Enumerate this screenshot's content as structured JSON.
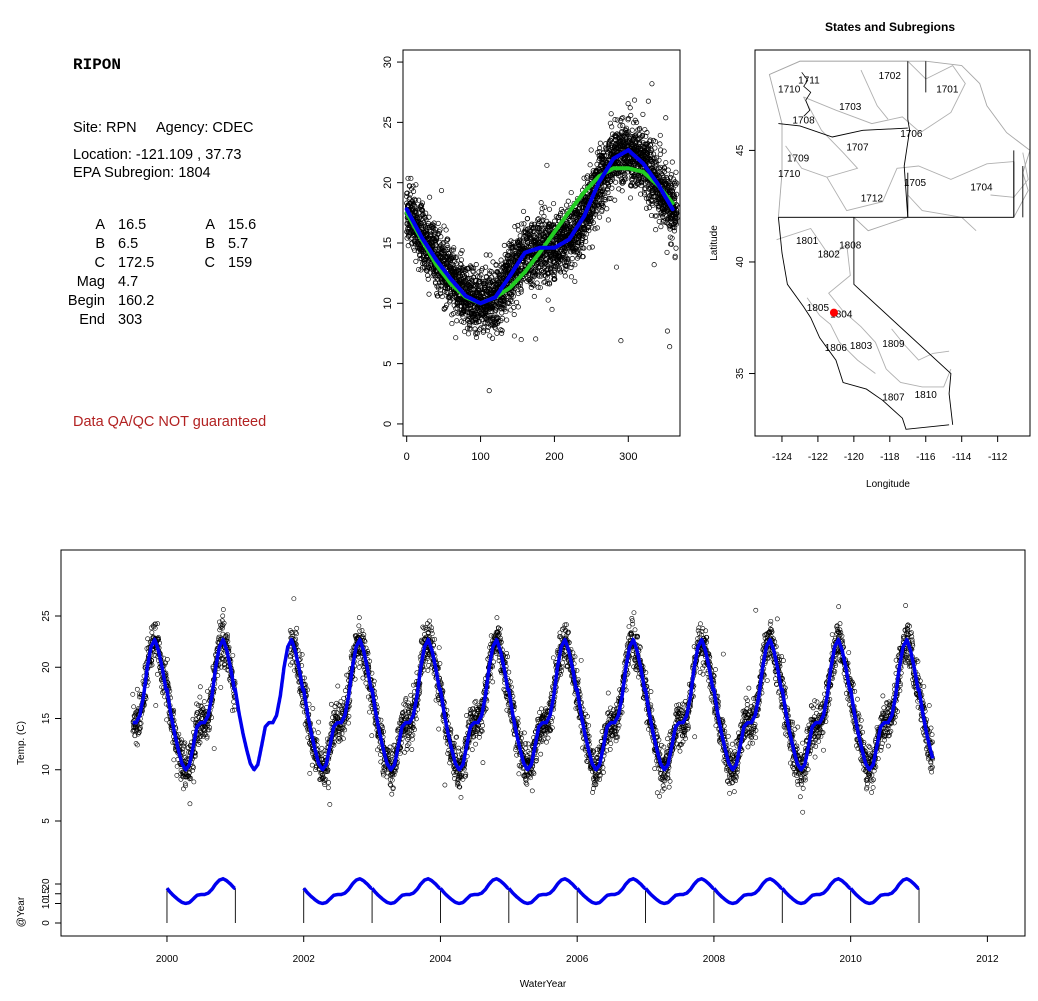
{
  "info": {
    "site_name": "RIPON",
    "site_line": "Site: RPN     Agency: CDEC",
    "location_line": "Location: -121.109 , 37.73",
    "subregion_line": "EPA Subregion: 1804",
    "warning": "Data QA/QC NOT guaranteed",
    "coef_col1": [
      {
        "label": "A",
        "value": "16.5"
      },
      {
        "label": "B",
        "value": "6.5"
      },
      {
        "label": "C",
        "value": "172.5"
      },
      {
        "label": "Mag",
        "value": "4.7"
      },
      {
        "label": "Begin",
        "value": "160.2"
      },
      {
        "label": "End",
        "value": "303"
      }
    ],
    "coef_col2": [
      {
        "label": "A",
        "value": "15.6"
      },
      {
        "label": "B",
        "value": "5.7"
      },
      {
        "label": "C",
        "value": "159"
      }
    ]
  },
  "colors": {
    "blue": "#0000ee",
    "green": "#22cc22",
    "red": "#ff0000",
    "warn": "#b22222"
  },
  "chart_data": [
    {
      "type": "scatter",
      "title": "",
      "xlabel": "",
      "ylabel": "",
      "xlim": [
        -5,
        370
      ],
      "ylim": [
        -1,
        31
      ],
      "x_ticks": [
        "0",
        "100",
        "200",
        "300"
      ],
      "y_ticks": [
        "0",
        "5",
        "10",
        "15",
        "20",
        "25",
        "30"
      ],
      "series": [
        {
          "kind": "points",
          "color": "#000000",
          "description_x": "day of water year",
          "points_per_day": 12
        },
        {
          "kind": "line",
          "color": "#0000ee",
          "x": [
            0,
            20,
            40,
            60,
            80,
            100,
            120,
            140,
            160,
            180,
            200,
            220,
            240,
            260,
            280,
            300,
            320,
            340,
            360
          ],
          "y": [
            17.8,
            15.5,
            13.6,
            12.0,
            10.6,
            10.0,
            10.5,
            12.3,
            14.2,
            14.6,
            14.6,
            15.3,
            17.2,
            20.0,
            22.0,
            22.7,
            21.6,
            19.9,
            17.8
          ]
        },
        {
          "kind": "line",
          "color": "#22cc22",
          "x": [
            0,
            20,
            40,
            60,
            80,
            100,
            120,
            140,
            160,
            180,
            200,
            220,
            240,
            260,
            280,
            300,
            320,
            340,
            360
          ],
          "y": [
            17.5,
            15.3,
            13.2,
            11.6,
            10.5,
            10.0,
            10.5,
            11.3,
            12.6,
            14.2,
            15.9,
            17.6,
            19.2,
            20.5,
            21.2,
            21.2,
            20.9,
            19.8,
            18.3
          ]
        }
      ]
    },
    {
      "type": "map",
      "title": "States and Subregions",
      "xlabel": "Longitude",
      "ylabel": "Latitude",
      "xlim": [
        -125.5,
        -110.2
      ],
      "ylim": [
        32.2,
        49.5
      ],
      "x_ticks": [
        "-124",
        "-122",
        "-120",
        "-118",
        "-116",
        "-114",
        "-112"
      ],
      "y_ticks": [
        "35",
        "40",
        "45"
      ],
      "subregion_labels": [
        {
          "text": "1702",
          "lon": -118.0,
          "lat": 48.2
        },
        {
          "text": "1701",
          "lon": -114.8,
          "lat": 47.6
        },
        {
          "text": "1711",
          "lon": -122.5,
          "lat": 48.0
        },
        {
          "text": "1710",
          "lon": -123.6,
          "lat": 47.6
        },
        {
          "text": "1703",
          "lon": -120.2,
          "lat": 46.8
        },
        {
          "text": "1708",
          "lon": -122.8,
          "lat": 46.2
        },
        {
          "text": "1706",
          "lon": -116.8,
          "lat": 45.6
        },
        {
          "text": "1707",
          "lon": -119.8,
          "lat": 45.0
        },
        {
          "text": "1709",
          "lon": -123.1,
          "lat": 44.5
        },
        {
          "text": "1710",
          "lon": -123.6,
          "lat": 43.8
        },
        {
          "text": "1705",
          "lon": -116.6,
          "lat": 43.4
        },
        {
          "text": "1704",
          "lon": -112.9,
          "lat": 43.2
        },
        {
          "text": "1712",
          "lon": -119.0,
          "lat": 42.7
        },
        {
          "text": "1801",
          "lon": -122.6,
          "lat": 40.8
        },
        {
          "text": "1808",
          "lon": -120.2,
          "lat": 40.6
        },
        {
          "text": "1802",
          "lon": -121.4,
          "lat": 40.2
        },
        {
          "text": "1805",
          "lon": -122.0,
          "lat": 37.8
        },
        {
          "text": "1804",
          "lon": -120.7,
          "lat": 37.5
        },
        {
          "text": "1806",
          "lon": -121.0,
          "lat": 36.0
        },
        {
          "text": "1803",
          "lon": -119.6,
          "lat": 36.1
        },
        {
          "text": "1809",
          "lon": -117.8,
          "lat": 36.2
        },
        {
          "text": "1807",
          "lon": -117.8,
          "lat": 33.8
        },
        {
          "text": "1810",
          "lon": -116.0,
          "lat": 33.9
        }
      ],
      "site_marker": {
        "lon": -121.109,
        "lat": 37.73,
        "color": "#ff0000"
      }
    },
    {
      "type": "scatter",
      "title": "",
      "xlabel": "WaterYear",
      "ylabel": "Temp. (C)",
      "ylabel_lower": "@Year",
      "xlim": [
        1998.45,
        2012.55
      ],
      "ylim_upper": [
        0.5,
        30.0
      ],
      "ylim_lower": [
        -2,
        32
      ],
      "x_ticks": [
        "2000",
        "2002",
        "2004",
        "2006",
        "2008",
        "2010",
        "2012"
      ],
      "y_ticks_upper": [
        "5",
        "10",
        "15",
        "20",
        "25"
      ],
      "y_ticks_lower": [
        "0",
        "10",
        "15",
        "20"
      ],
      "data_range": [
        1999.5,
        2011.2
      ],
      "gap_ranges": [
        [
          2001.0,
          2001.8
        ]
      ],
      "lower_panel_years": [
        "2000",
        "2002",
        "2003",
        "2004",
        "2005",
        "2006",
        "2007",
        "2008",
        "2009",
        "2010"
      ],
      "lower_panel_vlines": [
        2000,
        2001,
        2002,
        2003,
        2004,
        2005,
        2006,
        2007,
        2008,
        2009,
        2010,
        2011
      ]
    }
  ]
}
